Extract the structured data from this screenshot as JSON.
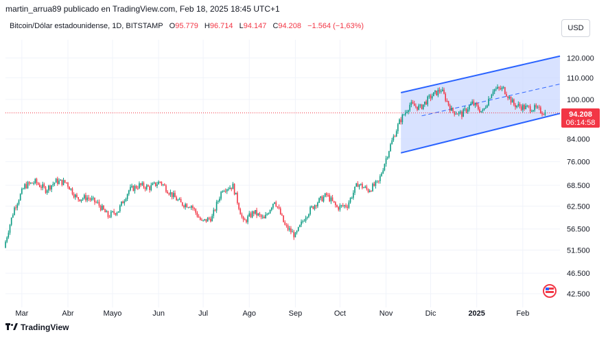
{
  "header": {
    "published_by": "martin_arrua89 publicado en TradingView.com, Feb 18, 2025 18:45 UTC+1"
  },
  "legend": {
    "symbol": "Bitcoin/Dólar estadounidense, 1D, BITSTAMP",
    "open_label": "O",
    "open": "95.779",
    "high_label": "H",
    "high": "96.714",
    "low_label": "L",
    "low": "94.147",
    "close_label": "C",
    "close": "94.208",
    "change": "−1.564 (−1,63%)"
  },
  "currency_button": "USD",
  "price_badge": {
    "price": "94.208",
    "countdown": "06:14:58"
  },
  "footer": {
    "brand": "TradingView"
  },
  "colors": {
    "up": "#089981",
    "down": "#f23645",
    "channel_line": "#2962ff",
    "channel_fill": "#c7d5ff",
    "price_line": "#f23645"
  },
  "chart_data": {
    "type": "candlestick",
    "y_scale": "log",
    "ylim": [
      40000,
      130000
    ],
    "y_ticks": [
      {
        "value": 120000,
        "label": "120.000"
      },
      {
        "value": 110000,
        "label": "110.000"
      },
      {
        "value": 100000,
        "label": "100.000"
      },
      {
        "value": 84000,
        "label": "84.000"
      },
      {
        "value": 76000,
        "label": "76.000"
      },
      {
        "value": 68500,
        "label": "68.500"
      },
      {
        "value": 62500,
        "label": "62.500"
      },
      {
        "value": 56500,
        "label": "56.500"
      },
      {
        "value": 51500,
        "label": "51.500"
      },
      {
        "value": 46500,
        "label": "46.500"
      },
      {
        "value": 42500,
        "label": "42.500"
      }
    ],
    "x_ticks": [
      {
        "date": "2024-03-01",
        "label": "Mar"
      },
      {
        "date": "2024-04-01",
        "label": "Abr"
      },
      {
        "date": "2024-05-01",
        "label": "Mayo"
      },
      {
        "date": "2024-06-01",
        "label": "Jun"
      },
      {
        "date": "2024-07-01",
        "label": "Jul"
      },
      {
        "date": "2024-08-01",
        "label": "Ago"
      },
      {
        "date": "2024-09-01",
        "label": "Sep"
      },
      {
        "date": "2024-10-01",
        "label": "Oct"
      },
      {
        "date": "2024-11-01",
        "label": "Nov"
      },
      {
        "date": "2024-12-01",
        "label": "Dic"
      },
      {
        "date": "2025-01-01",
        "label": "2025"
      },
      {
        "date": "2025-02-01",
        "label": "Feb"
      }
    ],
    "x_range": [
      "2024-02-19",
      "2025-02-26"
    ],
    "current_price": 94208,
    "channel": {
      "upper": [
        {
          "date": "2024-11-11",
          "price": 103000
        },
        {
          "date": "2025-02-26",
          "price": 121000
        }
      ],
      "lower": [
        {
          "date": "2024-11-11",
          "price": 79000
        },
        {
          "date": "2025-02-26",
          "price": 94000
        }
      ],
      "mid": [
        {
          "date": "2024-11-25",
          "price": 93000
        },
        {
          "date": "2025-02-26",
          "price": 107000
        }
      ]
    },
    "closes": [
      [
        "2024-02-19",
        52000
      ],
      [
        "2024-02-26",
        62000
      ],
      [
        "2024-03-04",
        68300
      ],
      [
        "2024-03-11",
        69500
      ],
      [
        "2024-03-18",
        67200
      ],
      [
        "2024-03-25",
        69700
      ],
      [
        "2024-04-01",
        69300
      ],
      [
        "2024-04-08",
        64600
      ],
      [
        "2024-04-15",
        64900
      ],
      [
        "2024-04-22",
        63200
      ],
      [
        "2024-04-29",
        59800
      ],
      [
        "2024-05-06",
        61400
      ],
      [
        "2024-05-13",
        67000
      ],
      [
        "2024-05-20",
        68500
      ],
      [
        "2024-05-27",
        67800
      ],
      [
        "2024-06-03",
        69600
      ],
      [
        "2024-06-10",
        66100
      ],
      [
        "2024-06-17",
        63200
      ],
      [
        "2024-06-24",
        62700
      ],
      [
        "2024-07-01",
        58200
      ],
      [
        "2024-07-08",
        59500
      ],
      [
        "2024-07-15",
        67500
      ],
      [
        "2024-07-22",
        68200
      ],
      [
        "2024-07-29",
        58100
      ],
      [
        "2024-08-05",
        60900
      ],
      [
        "2024-08-12",
        58900
      ],
      [
        "2024-08-19",
        64200
      ],
      [
        "2024-08-26",
        57300
      ],
      [
        "2024-09-02",
        54800
      ],
      [
        "2024-09-09",
        60000
      ],
      [
        "2024-09-16",
        63400
      ],
      [
        "2024-09-23",
        65600
      ],
      [
        "2024-09-30",
        62100
      ],
      [
        "2024-10-07",
        62800
      ],
      [
        "2024-10-14",
        69000
      ],
      [
        "2024-10-21",
        67000
      ],
      [
        "2024-10-28",
        69400
      ],
      [
        "2024-11-04",
        80200
      ],
      [
        "2024-11-11",
        90500
      ],
      [
        "2024-11-18",
        97700
      ],
      [
        "2024-11-25",
        96400
      ],
      [
        "2024-12-02",
        101200
      ],
      [
        "2024-12-09",
        104400
      ],
      [
        "2024-12-16",
        95200
      ],
      [
        "2024-12-23",
        93700
      ],
      [
        "2024-12-30",
        98300
      ],
      [
        "2025-01-06",
        94500
      ],
      [
        "2025-01-13",
        104500
      ],
      [
        "2025-01-20",
        104700
      ],
      [
        "2025-01-27",
        97700
      ],
      [
        "2025-02-03",
        96500
      ],
      [
        "2025-02-10",
        96100
      ],
      [
        "2025-02-17",
        94208
      ]
    ]
  }
}
